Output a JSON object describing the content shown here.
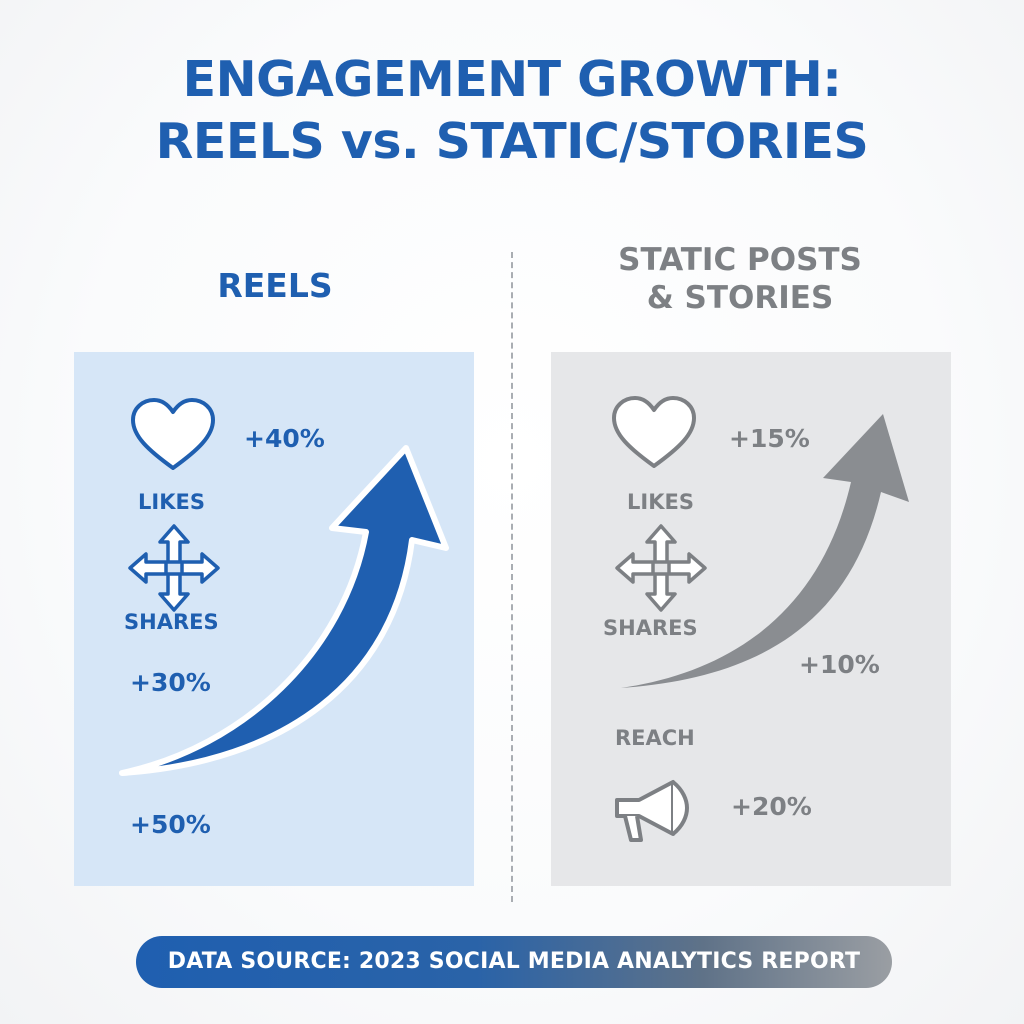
{
  "title": {
    "line1": "ENGAGEMENT GROWTH:",
    "line2": "REELS vs. STATIC/STORIES"
  },
  "reels": {
    "heading": "REELS",
    "likes_label": "LIKES",
    "likes_value": "+40%",
    "shares_label": "SHARES",
    "shares_value": "+30%",
    "reach_value": "+50%"
  },
  "static": {
    "heading_line1": "STATIC POSTS",
    "heading_line2": "& STORIES",
    "likes_label": "LIKES",
    "likes_value": "+15%",
    "shares_label": "SHARES",
    "shares_value": "+10%",
    "reach_label": "REACH",
    "reach_value": "+20%"
  },
  "source": "DATA SOURCE: 2023 SOCIAL MEDIA ANALYTICS REPORT",
  "colors": {
    "accent_blue": "#1f5fb0",
    "reels_panel": "#d6e6f7",
    "static_panel": "#e6e7e9",
    "static_gray": "#7d8084"
  },
  "icons": {
    "likes": "heart-icon",
    "shares": "four-way-arrows-icon",
    "reach": "megaphone-icon",
    "growth": "upward-arrow-icon"
  }
}
